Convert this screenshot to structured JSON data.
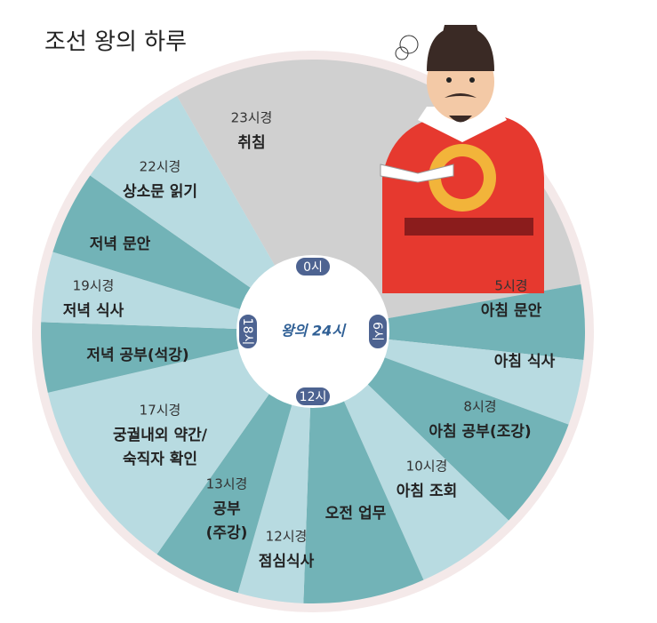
{
  "title": "조선 왕의 하루",
  "center_label": "왕의 24시",
  "hour_marks": [
    "0시",
    "6시",
    "12시",
    "18시"
  ],
  "segments": [
    {
      "time": "23시경",
      "lines": [
        "취침"
      ]
    },
    {
      "time": "5시경",
      "lines": [
        "아침 문안"
      ]
    },
    {
      "lines": [
        "아침 식사"
      ]
    },
    {
      "time": "8시경",
      "lines": [
        "아침 공부(조강)"
      ]
    },
    {
      "time": "10시경",
      "lines": [
        "아침 조회"
      ]
    },
    {
      "lines": [
        "오전 업무"
      ]
    },
    {
      "time": "12시경",
      "lines": [
        "점심식사"
      ]
    },
    {
      "time": "13시경",
      "lines": [
        "공부",
        "(주강)"
      ]
    },
    {
      "time": "17시경",
      "lines": [
        "궁궐내외 약간/",
        "숙직자 확인"
      ]
    },
    {
      "lines": [
        "저녁 공부(석강)"
      ]
    },
    {
      "time": "19시경",
      "lines": [
        "저녁 식사"
      ]
    },
    {
      "lines": [
        "저녁 문안"
      ]
    },
    {
      "time": "22시경",
      "lines": [
        "상소문 읽기"
      ]
    }
  ]
}
